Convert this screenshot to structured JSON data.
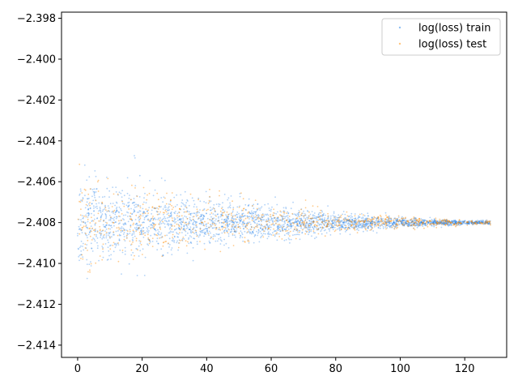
{
  "chart_data": {
    "type": "scatter",
    "title": "",
    "xlabel": "",
    "ylabel": "",
    "xlim": [
      -5,
      133
    ],
    "ylim": [
      -2.4146,
      -2.3977
    ],
    "x_ticks": [
      0,
      20,
      40,
      60,
      80,
      100,
      120
    ],
    "y_ticks": [
      -2.414,
      -2.412,
      -2.41,
      -2.408,
      -2.406,
      -2.404,
      -2.402,
      -2.4,
      -2.398
    ],
    "x_tick_labels": [
      "0",
      "20",
      "40",
      "60",
      "80",
      "100",
      "120"
    ],
    "y_tick_labels": [
      "−2.414",
      "−2.412",
      "−2.410",
      "−2.408",
      "−2.406",
      "−2.404",
      "−2.402",
      "−2.400",
      "−2.398"
    ],
    "grid": false,
    "legend_position": "upper right",
    "series": [
      {
        "name": "log(loss) train",
        "color": "#1f7fe8",
        "x_range": [
          0,
          128
        ],
        "center": -2.408,
        "spread_start": 0.0022,
        "spread_end": 4e-05
      },
      {
        "name": "log(loss) test",
        "color": "#ff8c00",
        "x_range": [
          0,
          128
        ],
        "center": -2.408,
        "spread_start": 0.0025,
        "spread_end": 5e-05
      }
    ]
  }
}
